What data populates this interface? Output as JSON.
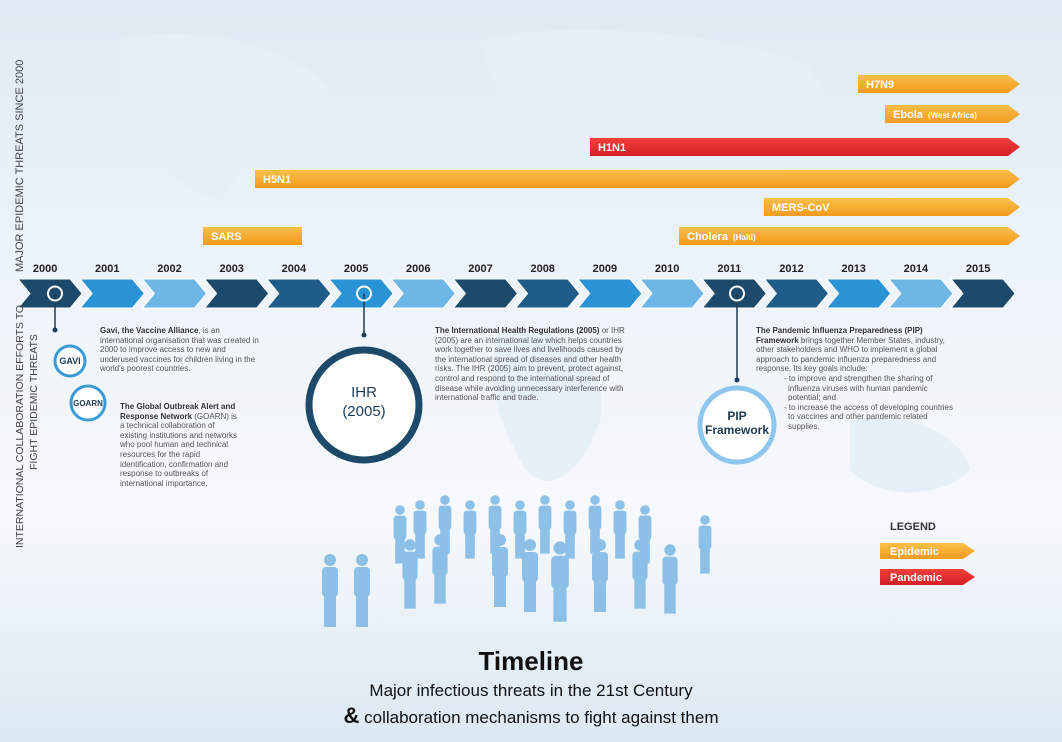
{
  "side_labels": {
    "threats": "MAJOR EPIDEMIC THREATS SINCE 2000",
    "collaboration_1": "INTERNATIONAL COLLABORATION EFFORTS TO",
    "collaboration_2": "FIGHT EPIDEMIC THREATS"
  },
  "threats": [
    {
      "name": "H7N9"
    },
    {
      "name": "Ebola",
      "note": "(West Africa)"
    },
    {
      "name": "H1N1"
    },
    {
      "name": "H5N1"
    },
    {
      "name": "MERS-CoV"
    },
    {
      "name": "SARS"
    },
    {
      "name": "Cholera",
      "note": "(Haiti)"
    }
  ],
  "years": [
    "2000",
    "2001",
    "2002",
    "2003",
    "2004",
    "2005",
    "2006",
    "2007",
    "2008",
    "2009",
    "2010",
    "2011",
    "2012",
    "2013",
    "2014",
    "2015"
  ],
  "mechanisms": {
    "gavi": {
      "badge": "GAVI",
      "bold": "Gavi, the Vaccine Alliance",
      "text": ", is an international organisation that was created in 2000 to improve access to new and underused vaccines for children living in the world's poorest countries."
    },
    "goarn": {
      "badge": "GOARN",
      "bold": "The Global Outbreak Alert and Response Network",
      "text": " (GOARN) is a technical collaboration of existing institutions and networks who pool human and technical resources for the rapid identification, confirmation and response to outbreaks of international importance."
    },
    "ihr": {
      "badge_1": "IHR",
      "badge_2": "(2005)",
      "bold": "The International Health Regulations (2005)",
      "text": " or IHR (2005) are an international law which helps countries work together to save lives and livelihoods caused by the international spread of diseases and other health risks. The IHR (2005) aim to prevent, protect against, control and respond to the international spread of disease while avoiding unnecessary interference with international traffic and trade."
    },
    "pip": {
      "badge_1": "PIP",
      "badge_2": "Framework",
      "bold": "The Pandemic Influenza Preparedness (PIP) Framework",
      "text": " brings together Member States, industry, other stakeholders and WHO to implement a global approach to pandemic influenza preparedness and response. Its key goals include:",
      "goals": [
        "- to improve and strengthen the sharing of influenza viruses with human pandemic potential; and",
        "- to increase the access of developing countries to vaccines and other pandemic related supplies."
      ]
    }
  },
  "legend": {
    "title": "LEGEND",
    "items": [
      "Epidemic",
      "Pandemic"
    ]
  },
  "footer": {
    "title": "Timeline",
    "line_1": "Major infectious threats in the 21st Century",
    "ampersand": "&",
    "line_2": "collaboration mechanisms to fight against them"
  }
}
